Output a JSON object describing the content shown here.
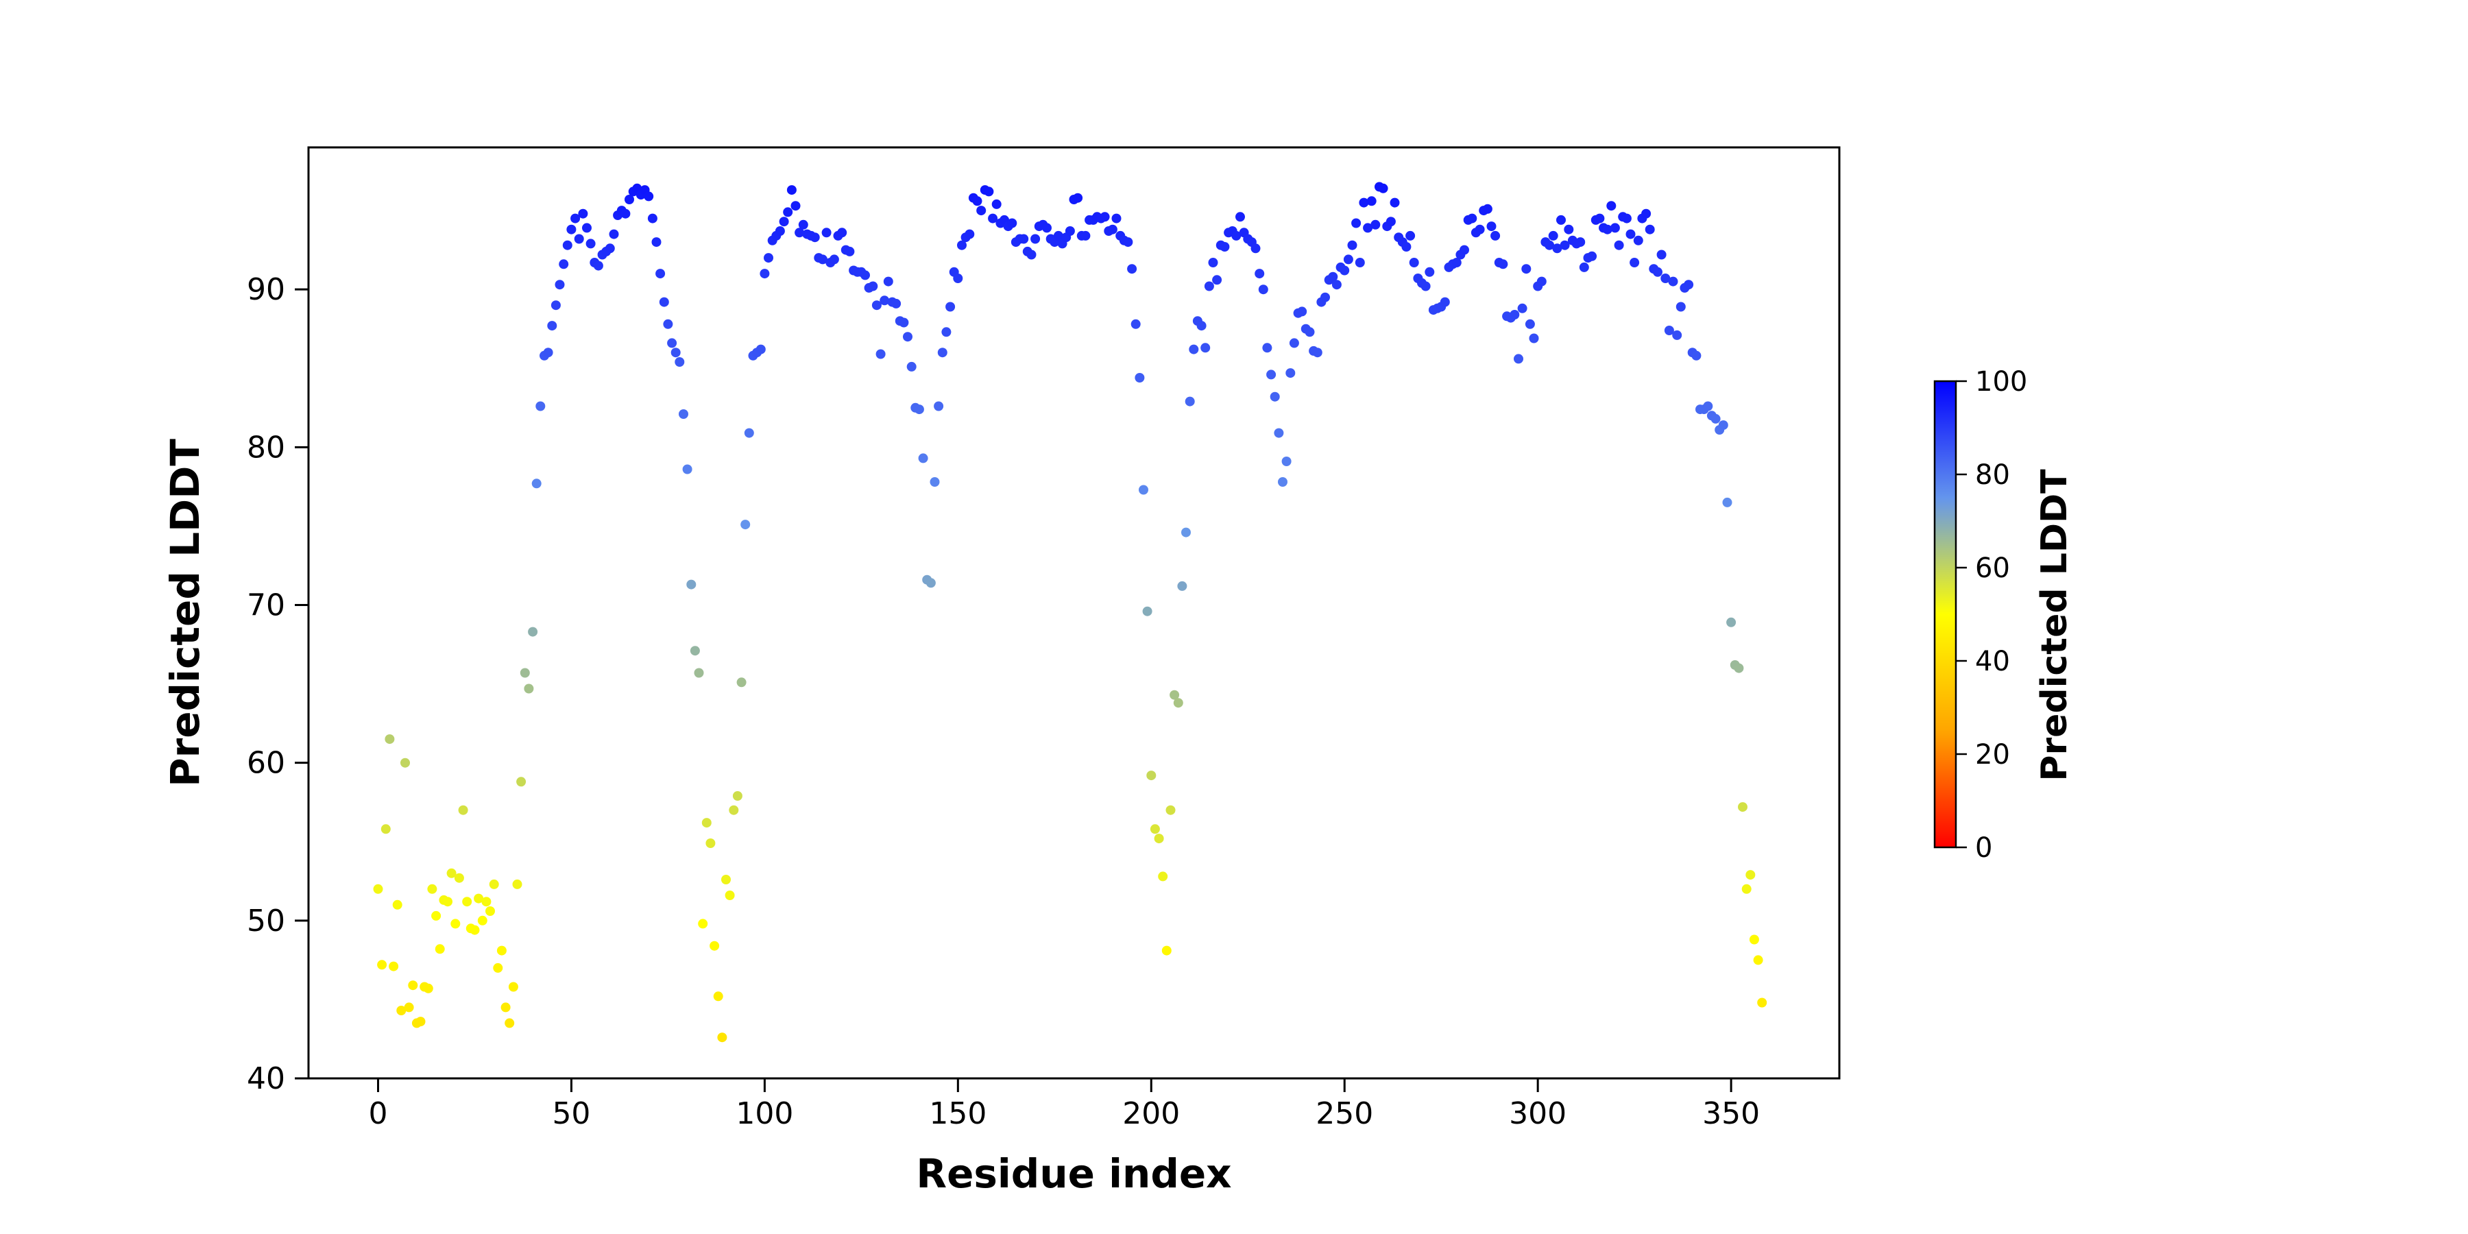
{
  "figure": {
    "background_color": "#ffffff",
    "text_color": "#000000",
    "spine_color": "#000000"
  },
  "chart_data": {
    "type": "scatter",
    "title": "",
    "xlabel": "Residue index",
    "ylabel": "Predicted LDDT",
    "x_note": "x value of each point = its index in values (residue 0..358)",
    "xlim": [
      -18,
      378
    ],
    "ylim": [
      40,
      99
    ],
    "x_ticks": [
      0,
      50,
      100,
      150,
      200,
      250,
      300,
      350
    ],
    "y_ticks": [
      40,
      50,
      60,
      70,
      80,
      90
    ],
    "grid": false,
    "legend": "none",
    "marker": {
      "shape": "circle",
      "radius_px": 7
    },
    "values": [
      52.0,
      47.2,
      55.8,
      61.5,
      47.1,
      51.0,
      44.3,
      60.0,
      44.5,
      45.9,
      43.5,
      43.6,
      45.8,
      45.7,
      52.0,
      50.3,
      48.2,
      51.3,
      51.2,
      53.0,
      49.8,
      52.7,
      57.0,
      51.2,
      49.5,
      49.4,
      51.4,
      50.0,
      51.2,
      50.6,
      52.3,
      47.0,
      48.1,
      44.5,
      43.5,
      45.8,
      52.3,
      58.8,
      65.7,
      64.7,
      68.3,
      77.7,
      82.6,
      85.8,
      86.0,
      87.7,
      89.0,
      90.3,
      91.6,
      92.8,
      93.8,
      94.5,
      93.2,
      94.8,
      93.9,
      92.9,
      91.7,
      91.5,
      92.2,
      92.4,
      92.6,
      93.5,
      94.7,
      95.0,
      94.8,
      95.7,
      96.2,
      96.4,
      96.0,
      96.3,
      95.9,
      94.5,
      93.0,
      91.0,
      89.2,
      87.8,
      86.6,
      86.0,
      85.4,
      82.1,
      78.6,
      71.3,
      67.1,
      65.7,
      49.8,
      56.2,
      54.9,
      48.4,
      45.2,
      42.6,
      52.6,
      51.6,
      57.0,
      57.9,
      65.1,
      75.1,
      80.9,
      85.8,
      86.0,
      86.2,
      91.0,
      92.0,
      93.1,
      93.4,
      93.7,
      94.3,
      94.9,
      96.3,
      95.3,
      93.6,
      94.1,
      93.5,
      93.4,
      93.3,
      92.0,
      91.9,
      93.6,
      91.7,
      91.9,
      93.4,
      93.6,
      92.5,
      92.4,
      91.2,
      91.1,
      91.1,
      90.9,
      90.1,
      90.2,
      89.0,
      85.9,
      89.3,
      90.5,
      89.2,
      89.1,
      88.0,
      87.9,
      87.0,
      85.1,
      82.5,
      82.4,
      79.3,
      71.6,
      71.4,
      77.8,
      82.6,
      86.0,
      87.3,
      88.9,
      91.1,
      90.7,
      92.8,
      93.3,
      93.5,
      95.8,
      95.6,
      95.0,
      96.3,
      96.2,
      94.5,
      95.4,
      94.2,
      94.4,
      94.0,
      94.2,
      93.0,
      93.2,
      93.2,
      92.4,
      92.2,
      93.2,
      94.0,
      94.1,
      93.9,
      93.2,
      93.0,
      93.4,
      92.9,
      93.3,
      93.7,
      95.7,
      95.8,
      93.4,
      93.4,
      94.4,
      94.4,
      94.6,
      94.5,
      94.6,
      93.7,
      93.8,
      94.5,
      93.4,
      93.1,
      93.0,
      91.3,
      87.8,
      84.4,
      77.3,
      69.6,
      59.2,
      55.8,
      55.2,
      52.8,
      48.1,
      57.0,
      64.3,
      63.8,
      71.2,
      74.6,
      82.9,
      86.2,
      88.0,
      87.7,
      86.3,
      90.2,
      91.7,
      90.6,
      92.8,
      92.7,
      93.6,
      93.7,
      93.4,
      94.6,
      93.6,
      93.2,
      93.0,
      92.6,
      91.0,
      90.0,
      86.3,
      84.6,
      83.2,
      80.9,
      77.8,
      79.1,
      84.7,
      86.6,
      88.5,
      88.6,
      87.5,
      87.3,
      86.1,
      86.0,
      89.2,
      89.5,
      90.6,
      90.8,
      90.3,
      91.4,
      91.2,
      91.9,
      92.8,
      94.2,
      91.7,
      95.5,
      93.9,
      95.6,
      94.1,
      96.5,
      96.4,
      94.0,
      94.3,
      95.5,
      93.3,
      93.0,
      92.7,
      93.4,
      91.7,
      90.7,
      90.4,
      90.2,
      91.1,
      88.7,
      88.8,
      88.9,
      89.2,
      91.4,
      91.6,
      91.7,
      92.2,
      92.5,
      94.4,
      94.5,
      93.6,
      93.8,
      95.0,
      95.1,
      94.0,
      93.4,
      91.7,
      91.6,
      88.3,
      88.2,
      88.4,
      85.6,
      88.8,
      91.3,
      87.8,
      86.9,
      90.2,
      90.5,
      93.0,
      92.8,
      93.4,
      92.6,
      94.4,
      92.8,
      93.8,
      93.1,
      92.9,
      93.0,
      91.4,
      92.0,
      92.1,
      94.4,
      94.5,
      93.9,
      93.8,
      95.3,
      93.9,
      92.8,
      94.6,
      94.5,
      93.5,
      91.7,
      93.1,
      94.5,
      94.8,
      93.8,
      91.3,
      91.1,
      92.2,
      90.7,
      87.4,
      90.5,
      87.1,
      88.9,
      90.1,
      90.3,
      86.0,
      85.8,
      82.4,
      82.4,
      82.6,
      82.0,
      81.8,
      81.1,
      81.4,
      76.5,
      68.9,
      66.2,
      66.0,
      57.2,
      52.0,
      52.9,
      48.8,
      47.5,
      44.8
    ],
    "colormap": {
      "stops": [
        {
          "value": 0,
          "color": "#FF0000"
        },
        {
          "value": 25,
          "color": "#FFA500"
        },
        {
          "value": 50,
          "color": "#FFFF00"
        },
        {
          "value": 75,
          "color": "#6495ED"
        },
        {
          "value": 100,
          "color": "#0000FF"
        }
      ]
    },
    "colorbar": {
      "label": "Predicted LDDT",
      "ticks": [
        0,
        20,
        40,
        60,
        80,
        100
      ],
      "range": [
        0,
        100
      ],
      "position": "right"
    }
  }
}
